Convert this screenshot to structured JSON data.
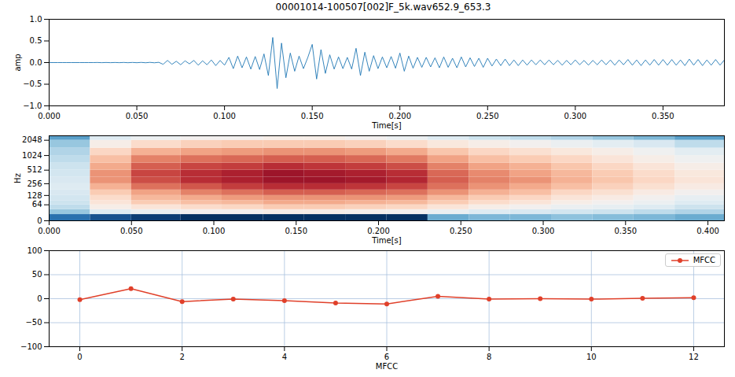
{
  "chart_data": [
    {
      "type": "line",
      "title": "00001014-100507[002]F_5k.wav652.9_653.3",
      "xlabel": "Time[s]",
      "ylabel": "amp",
      "color": "#1f77b4",
      "x": [
        0,
        0.0025,
        0.005,
        0.0075,
        0.01,
        0.0125,
        0.015,
        0.0175,
        0.02,
        0.0225,
        0.025,
        0.0275,
        0.03,
        0.0325,
        0.035,
        0.0375,
        0.04,
        0.0425,
        0.045,
        0.0475,
        0.05,
        0.0525,
        0.055,
        0.0575,
        0.06,
        0.0625,
        0.065,
        0.0675,
        0.07,
        0.0725,
        0.075,
        0.0775,
        0.08,
        0.0825,
        0.085,
        0.0875,
        0.09,
        0.0925,
        0.095,
        0.0975,
        0.1,
        0.1025,
        0.105,
        0.1075,
        0.11,
        0.1125,
        0.115,
        0.1175,
        0.12,
        0.1225,
        0.125,
        0.1275,
        0.13,
        0.1325,
        0.135,
        0.1375,
        0.14,
        0.1425,
        0.145,
        0.1475,
        0.15,
        0.1525,
        0.155,
        0.1575,
        0.16,
        0.1625,
        0.165,
        0.1675,
        0.17,
        0.1725,
        0.175,
        0.1775,
        0.18,
        0.1825,
        0.185,
        0.1875,
        0.19,
        0.1925,
        0.195,
        0.1975,
        0.2,
        0.2025,
        0.205,
        0.2075,
        0.21,
        0.2125,
        0.215,
        0.2175,
        0.22,
        0.2225,
        0.225,
        0.2275,
        0.23,
        0.2325,
        0.235,
        0.2375,
        0.24,
        0.2425,
        0.245,
        0.2475,
        0.25,
        0.2525,
        0.255,
        0.2575,
        0.26,
        0.2625,
        0.265,
        0.2675,
        0.27,
        0.2725,
        0.275,
        0.2775,
        0.28,
        0.2825,
        0.285,
        0.2875,
        0.29,
        0.2925,
        0.295,
        0.2975,
        0.3,
        0.3025,
        0.305,
        0.3075,
        0.31,
        0.3125,
        0.315,
        0.3175,
        0.32,
        0.3225,
        0.325,
        0.3275,
        0.33,
        0.3325,
        0.335,
        0.3375,
        0.34,
        0.3425,
        0.345,
        0.3475,
        0.35,
        0.3525,
        0.355,
        0.3575,
        0.36,
        0.3625,
        0.365,
        0.3675,
        0.37,
        0.3725,
        0.375,
        0.3775,
        0.38,
        0.3825,
        0.385
      ],
      "values": [
        0,
        0,
        0,
        0,
        0,
        0,
        0,
        0,
        0,
        0,
        0,
        0.002,
        -0.002,
        0.002,
        -0.002,
        0.002,
        -0.002,
        0.003,
        -0.003,
        0.003,
        -0.003,
        0.004,
        -0.004,
        0.005,
        -0.005,
        0.006,
        -0.04,
        0.05,
        -0.04,
        0.03,
        -0.05,
        0.04,
        -0.03,
        0.05,
        -0.06,
        0.04,
        -0.05,
        0.06,
        -0.07,
        0.05,
        -0.06,
        0.12,
        -0.14,
        0.15,
        -0.12,
        0.13,
        -0.15,
        0.14,
        -0.16,
        0.2,
        -0.3,
        0.58,
        -0.6,
        0.45,
        -0.35,
        0.22,
        -0.2,
        0.15,
        -0.14,
        0.12,
        0.42,
        -0.38,
        0.3,
        -0.25,
        0.18,
        -0.15,
        0.13,
        -0.14,
        0.12,
        -0.15,
        0.33,
        -0.3,
        0.24,
        -0.2,
        0.16,
        -0.14,
        0.13,
        -0.12,
        0.14,
        -0.13,
        0.22,
        -0.2,
        0.15,
        -0.13,
        0.12,
        -0.11,
        0.12,
        -0.1,
        0.11,
        -0.12,
        0.13,
        -0.11,
        0.1,
        -0.12,
        0.13,
        -0.1,
        0.11,
        -0.09,
        0.1,
        -0.11,
        0.1,
        -0.08,
        0.08,
        -0.07,
        0.08,
        -0.07,
        0.06,
        -0.07,
        0.06,
        -0.06,
        0.06,
        -0.05,
        0.06,
        -0.05,
        0.06,
        -0.05,
        0.05,
        -0.06,
        0.05,
        -0.05,
        0.06,
        -0.05,
        0.05,
        -0.06,
        0.05,
        -0.05,
        0.06,
        -0.05,
        0.06,
        -0.06,
        0.06,
        -0.05,
        0.07,
        -0.06,
        0.06,
        -0.07,
        0.06,
        -0.06,
        0.07,
        -0.06,
        0.07,
        -0.06,
        0.07,
        -0.06,
        0.06,
        -0.07,
        0.08,
        -0.06,
        0.07,
        -0.07,
        0.06,
        -0.06,
        0.07,
        -0.06,
        0.06
      ],
      "xlim": [
        0,
        0.385
      ],
      "ylim": [
        -1,
        1
      ],
      "xticks": [
        {
          "value": 0,
          "label": "0.000"
        },
        {
          "value": 0.05,
          "label": "0.050"
        },
        {
          "value": 0.1,
          "label": "0.100"
        },
        {
          "value": 0.15,
          "label": "0.150"
        },
        {
          "value": 0.2,
          "label": "0.200"
        },
        {
          "value": 0.25,
          "label": "0.250"
        },
        {
          "value": 0.3,
          "label": "0.300"
        },
        {
          "value": 0.35,
          "label": "0.350"
        }
      ],
      "yticks": [
        {
          "value": -1,
          "label": "−1.0"
        },
        {
          "value": -0.5,
          "label": "−0.5"
        },
        {
          "value": 0,
          "label": "0.0"
        },
        {
          "value": 0.5,
          "label": "0.5"
        },
        {
          "value": 1,
          "label": "1.0"
        }
      ],
      "grid": false
    },
    {
      "type": "heatmap",
      "xlabel": "Time[s]",
      "ylabel": "Hz",
      "log": "y",
      "x_edges": [
        0,
        0.025,
        0.05,
        0.08,
        0.105,
        0.13,
        0.155,
        0.18,
        0.205,
        0.23,
        0.255,
        0.28,
        0.305,
        0.33,
        0.355,
        0.38,
        0.41
      ],
      "y_edges": [
        0,
        20,
        40,
        64,
        90,
        128,
        180,
        256,
        360,
        512,
        720,
        1024,
        1440,
        2048,
        2500
      ],
      "cells": [
        [
          -70,
          -55,
          -50,
          -48,
          -47,
          -46,
          -45,
          -46,
          -47,
          -48,
          -50,
          -52,
          -55,
          -62
        ],
        [
          -75,
          -45,
          -38,
          -35,
          -33,
          -30,
          -26,
          -22,
          -22,
          -25,
          -28,
          -32,
          -38,
          -45
        ],
        [
          -78,
          -42,
          -35,
          -30,
          -27,
          -24,
          -18,
          -14,
          -13,
          -16,
          -20,
          -26,
          -33,
          -42
        ],
        [
          -80,
          -40,
          -33,
          -28,
          -25,
          -20,
          -15,
          -10,
          -10,
          -13,
          -18,
          -24,
          -31,
          -40
        ],
        [
          -80,
          -40,
          -32,
          -27,
          -23,
          -18,
          -12,
          -8,
          -8,
          -12,
          -17,
          -23,
          -30,
          -40
        ],
        [
          -80,
          -38,
          -30,
          -25,
          -22,
          -16,
          -10,
          -6,
          -6,
          -10,
          -16,
          -22,
          -30,
          -38
        ],
        [
          -80,
          -38,
          -30,
          -25,
          -22,
          -16,
          -10,
          -6,
          -7,
          -11,
          -16,
          -22,
          -30,
          -38
        ],
        [
          -80,
          -39,
          -31,
          -26,
          -22,
          -17,
          -11,
          -7,
          -8,
          -12,
          -17,
          -23,
          -31,
          -40
        ],
        [
          -80,
          -40,
          -32,
          -27,
          -23,
          -18,
          -13,
          -9,
          -10,
          -14,
          -19,
          -25,
          -33,
          -42
        ],
        [
          -60,
          -42,
          -35,
          -30,
          -27,
          -22,
          -18,
          -16,
          -17,
          -20,
          -24,
          -29,
          -36,
          -45
        ],
        [
          -58,
          -45,
          -38,
          -33,
          -30,
          -26,
          -22,
          -20,
          -21,
          -24,
          -28,
          -32,
          -38,
          -48
        ],
        [
          -58,
          -46,
          -40,
          -35,
          -32,
          -28,
          -25,
          -22,
          -24,
          -26,
          -30,
          -34,
          -40,
          -50
        ],
        [
          -56,
          -47,
          -42,
          -38,
          -35,
          -32,
          -28,
          -26,
          -27,
          -29,
          -32,
          -36,
          -42,
          -52
        ],
        [
          -57,
          -48,
          -43,
          -40,
          -37,
          -34,
          -31,
          -29,
          -30,
          -32,
          -35,
          -38,
          -44,
          -55
        ],
        [
          -58,
          -50,
          -45,
          -42,
          -40,
          -37,
          -34,
          -32,
          -33,
          -35,
          -38,
          -41,
          -46,
          -58
        ],
        [
          -60,
          -52,
          -48,
          -45,
          -43,
          -40,
          -37,
          -35,
          -36,
          -38,
          -41,
          -44,
          -50,
          -62
        ]
      ],
      "clim": [
        -80,
        0
      ],
      "xlim": [
        0,
        0.41
      ],
      "ylim": [
        0,
        2500
      ],
      "xticks": [
        {
          "value": 0,
          "label": "0.000"
        },
        {
          "value": 0.05,
          "label": "0.050"
        },
        {
          "value": 0.1,
          "label": "0.100"
        },
        {
          "value": 0.15,
          "label": "0.150"
        },
        {
          "value": 0.2,
          "label": "0.200"
        },
        {
          "value": 0.25,
          "label": "0.250"
        },
        {
          "value": 0.3,
          "label": "0.300"
        },
        {
          "value": 0.35,
          "label": "0.350"
        },
        {
          "value": 0.4,
          "label": "0.400"
        }
      ],
      "yticks": [
        0,
        64,
        128,
        256,
        512,
        1024,
        2048
      ]
    },
    {
      "type": "line",
      "xlabel": "MFCC",
      "x": [
        0,
        1,
        2,
        3,
        4,
        5,
        6,
        7,
        8,
        9,
        10,
        11,
        12
      ],
      "series": [
        {
          "name": "MFCC",
          "color": "#e0402a",
          "marker": "o",
          "line_style": "solid",
          "values": [
            -2,
            21,
            -6,
            -1,
            -4,
            -9,
            -11,
            5,
            -1,
            0,
            -1,
            1,
            2
          ]
        }
      ],
      "xlim": [
        -0.6,
        12.6
      ],
      "ylim": [
        -100,
        100
      ],
      "xticks": [
        0,
        2,
        4,
        6,
        8,
        10,
        12
      ],
      "yticks": [
        {
          "value": -100,
          "label": "−100"
        },
        {
          "value": -50,
          "label": "−50"
        },
        0,
        50,
        100
      ],
      "grid": true,
      "legend": "upper right"
    }
  ]
}
